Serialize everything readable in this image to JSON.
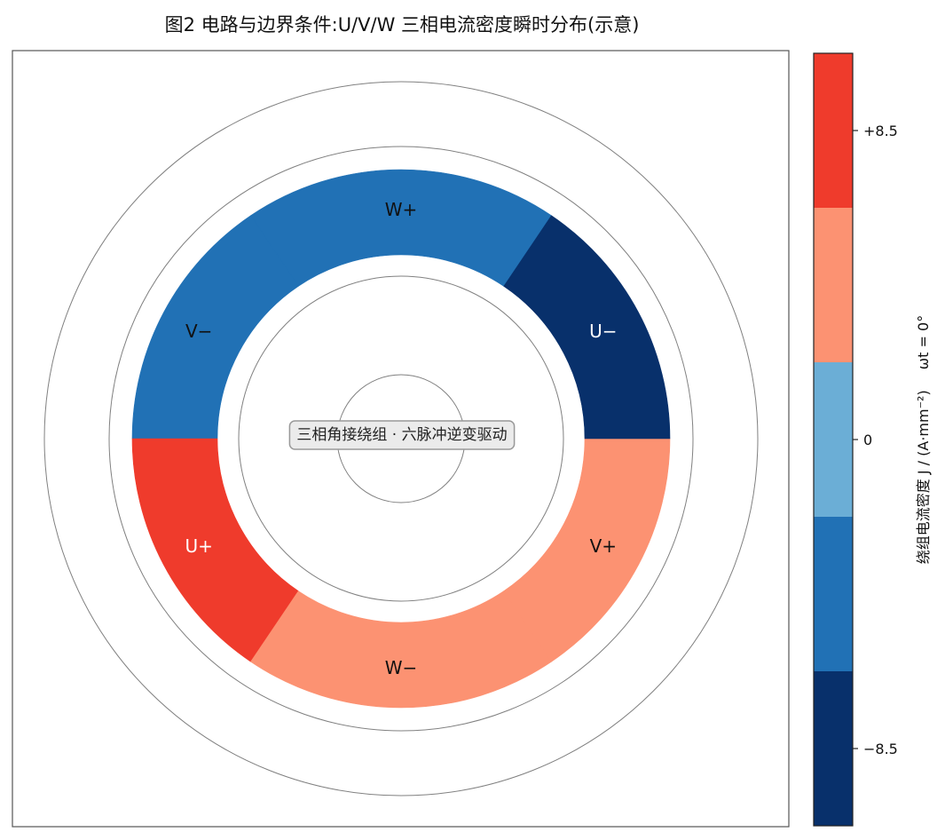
{
  "title": "图2 电路与边界条件:U/V/W 三相电流密度瞬时分布(示意)",
  "center_label": "三相角接绕组 · 六脉冲逆变驱动",
  "colors": {
    "c_neg_high": "#08306b",
    "c_neg_mid": "#2171b5",
    "c_zero": "#6baed6",
    "c_pos_mid": "#fc9272",
    "c_pos_high": "#ef3b2c",
    "guide_circle": "#808080",
    "label_light": "#ffffff",
    "label_dark": "#111111"
  },
  "chart_data": {
    "type": "polar-sector-map",
    "phase_angle_label": "ωt = 0°",
    "sectors": [
      {
        "name": "W+",
        "start_deg": 56,
        "end_deg": 124,
        "color": "#2171b5",
        "label_color": "#111111"
      },
      {
        "name": "V−",
        "start_deg": 124,
        "end_deg": 180,
        "color": "#2171b5",
        "label_color": "#111111"
      },
      {
        "name": "U+",
        "start_deg": 180,
        "end_deg": 236,
        "color": "#ef3b2c",
        "label_color": "#ffffff"
      },
      {
        "name": "W−",
        "start_deg": 236,
        "end_deg": 304,
        "color": "#fc9272",
        "label_color": "#111111"
      },
      {
        "name": "V+",
        "start_deg": 304,
        "end_deg": 360,
        "color": "#fc9272",
        "label_color": "#111111"
      },
      {
        "name": "U−",
        "start_deg": 0,
        "end_deg": 56,
        "color": "#08306b",
        "label_color": "#ffffff"
      }
    ],
    "colorbar": {
      "label": "绕组电流密度 J / (A·mm⁻²)",
      "range": [
        -10.625,
        10.625
      ],
      "bins": [
        {
          "from": -10.625,
          "to": -6.375,
          "color": "#08306b"
        },
        {
          "from": -6.375,
          "to": -2.125,
          "color": "#2171b5"
        },
        {
          "from": -2.125,
          "to": 2.125,
          "color": "#6baed6"
        },
        {
          "from": 2.125,
          "to": 6.375,
          "color": "#fc9272"
        },
        {
          "from": 6.375,
          "to": 10.625,
          "color": "#ef3b2c"
        }
      ],
      "ticks": [
        {
          "value": 8.5,
          "label": "+8.5"
        },
        {
          "value": 0,
          "label": "0"
        },
        {
          "value": -8.5,
          "label": "−8.5"
        }
      ]
    }
  }
}
